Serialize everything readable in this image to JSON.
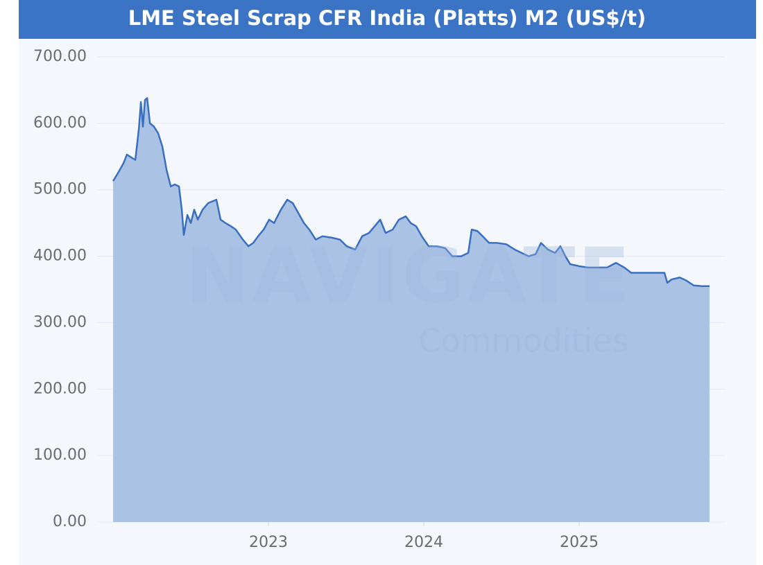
{
  "chart_data": {
    "type": "area",
    "title": "LME Steel Scrap CFR India (Platts) M2 (US$/t)",
    "watermark": [
      "NAVIGATE",
      "Commodities"
    ],
    "x": [
      2022.0,
      2022.031,
      2022.067,
      2022.089,
      2022.121,
      2022.143,
      2022.165,
      2022.179,
      2022.192,
      2022.205,
      2022.219,
      2022.237,
      2022.263,
      2022.29,
      2022.317,
      2022.344,
      2022.371,
      2022.397,
      2022.424,
      2022.442,
      2022.455,
      2022.478,
      2022.5,
      2022.522,
      2022.545,
      2022.576,
      2022.612,
      2022.665,
      2022.692,
      2022.723,
      2022.759,
      2022.79,
      2022.835,
      2022.871,
      2022.902,
      2022.933,
      2022.969,
      2023.004,
      2023.036,
      2023.08,
      2023.121,
      2023.156,
      2023.192,
      2023.228,
      2023.263,
      2023.304,
      2023.348,
      2023.406,
      2023.46,
      2023.504,
      2023.558,
      2023.603,
      2023.647,
      2023.683,
      2023.719,
      2023.754,
      2023.799,
      2023.839,
      2023.884,
      2023.915,
      2023.951,
      2023.987,
      2024.031,
      2024.085,
      2024.138,
      2024.183,
      2024.241,
      2024.286,
      2024.308,
      2024.344,
      2024.379,
      2024.42,
      2024.469,
      2024.531,
      2024.585,
      2024.629,
      2024.674,
      2024.719,
      2024.754,
      2024.799,
      2024.844,
      2024.879,
      2024.911,
      2024.942,
      2025.0,
      2025.058,
      2025.121,
      2025.179,
      2025.237,
      2025.29,
      2025.335,
      2025.402,
      2025.469,
      2025.549,
      2025.567,
      2025.594,
      2025.647,
      2025.692,
      2025.737,
      2025.79,
      2025.839
    ],
    "series": [
      {
        "name": "LME Steel Scrap CFR India (Platts) M2",
        "color": "#3a6fc0",
        "fill": "#aac2e4",
        "values": [
          513,
          525,
          540,
          553,
          548,
          545,
          590,
          632,
          595,
          635,
          638,
          600,
          595,
          585,
          565,
          530,
          505,
          508,
          505,
          470,
          432,
          462,
          450,
          470,
          455,
          470,
          480,
          485,
          455,
          450,
          445,
          440,
          425,
          415,
          420,
          430,
          440,
          455,
          450,
          470,
          485,
          480,
          465,
          450,
          440,
          425,
          430,
          428,
          425,
          415,
          410,
          430,
          435,
          445,
          455,
          435,
          440,
          455,
          460,
          450,
          445,
          430,
          415,
          415,
          412,
          400,
          400,
          405,
          440,
          438,
          430,
          420,
          420,
          418,
          410,
          405,
          400,
          403,
          420,
          410,
          405,
          415,
          400,
          388,
          385,
          383,
          383,
          383,
          390,
          383,
          375,
          375,
          375,
          375,
          360,
          365,
          368,
          363,
          356,
          355,
          355
        ]
      }
    ],
    "xlim": [
      2021.897,
      2025.9375
    ],
    "xticks": [
      2023,
      2024,
      2025
    ],
    "ylim": [
      0,
      700
    ],
    "yticks": [
      {
        "value": 0,
        "label": "0.00"
      },
      {
        "value": 100,
        "label": "100.00"
      },
      {
        "value": 200,
        "label": "200.00"
      },
      {
        "value": 300,
        "label": "300.00"
      },
      {
        "value": 400,
        "label": "400.00"
      },
      {
        "value": 500,
        "label": "500.00"
      },
      {
        "value": 600,
        "label": "600.00"
      },
      {
        "value": 700,
        "label": "700.00"
      }
    ],
    "grid": true
  }
}
